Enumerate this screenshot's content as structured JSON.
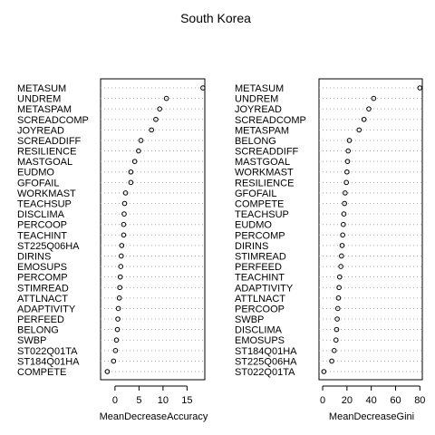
{
  "title": "South Korea",
  "chart_data": [
    {
      "type": "scatter",
      "xlabel": "MeanDecreaseAccuracy",
      "xlim": [
        -3,
        18.7
      ],
      "xticks": [
        0,
        5,
        10,
        15
      ],
      "grid": "dotted horizontal",
      "categories": [
        "METASUM",
        "UNDREM",
        "METASPAM",
        "SCREADCOMP",
        "JOYREAD",
        "SCREADDIFF",
        "RESILIENCE",
        "MASTGOAL",
        "EUDMO",
        "GFOFAIL",
        "WORKMAST",
        "TEACHSUP",
        "DISCLIMA",
        "PERCOOP",
        "TEACHINT",
        "ST225Q06HA",
        "DIRINS",
        "EMOSUPS",
        "PERCOMP",
        "STIMREAD",
        "ATTLNACT",
        "ADAPTIVITY",
        "PERFEED",
        "BELONG",
        "SWBP",
        "ST022Q01TA",
        "ST184Q01HA",
        "COMPETE"
      ],
      "values": [
        18.3,
        10.7,
        9.3,
        8.5,
        7.6,
        5.4,
        4.9,
        4.1,
        3.3,
        3.3,
        2.2,
        2.0,
        1.9,
        1.8,
        1.8,
        1.4,
        1.3,
        1.2,
        1.1,
        1.0,
        0.9,
        0.7,
        0.6,
        0.5,
        0.3,
        0.1,
        -0.3,
        -1.6
      ]
    },
    {
      "type": "scatter",
      "xlabel": "MeanDecreaseGini",
      "xlim": [
        -3,
        82
      ],
      "xticks": [
        0,
        20,
        40,
        60,
        80
      ],
      "grid": "dotted horizontal",
      "categories": [
        "METASUM",
        "UNDREM",
        "JOYREAD",
        "SCREADCOMP",
        "METASPAM",
        "BELONG",
        "SCREADDIFF",
        "MASTGOAL",
        "WORKMAST",
        "RESILIENCE",
        "GFOFAIL",
        "COMPETE",
        "TEACHSUP",
        "EUDMO",
        "PERCOMP",
        "DIRINS",
        "STIMREAD",
        "PERFEED",
        "TEACHINT",
        "ADAPTIVITY",
        "ATTLNACT",
        "PERCOOP",
        "SWBP",
        "DISCLIMA",
        "EMOSUPS",
        "ST184Q01HA",
        "ST225Q06HA",
        "ST022Q01TA"
      ],
      "values": [
        80.0,
        42.0,
        38.0,
        34.0,
        30.0,
        22.0,
        21.0,
        20.5,
        20.0,
        19.5,
        18.5,
        18.0,
        17.5,
        17.0,
        16.5,
        16.0,
        15.5,
        15.0,
        14.0,
        13.5,
        13.0,
        12.5,
        12.0,
        11.5,
        11.0,
        9.5,
        7.5,
        1.0
      ]
    }
  ]
}
